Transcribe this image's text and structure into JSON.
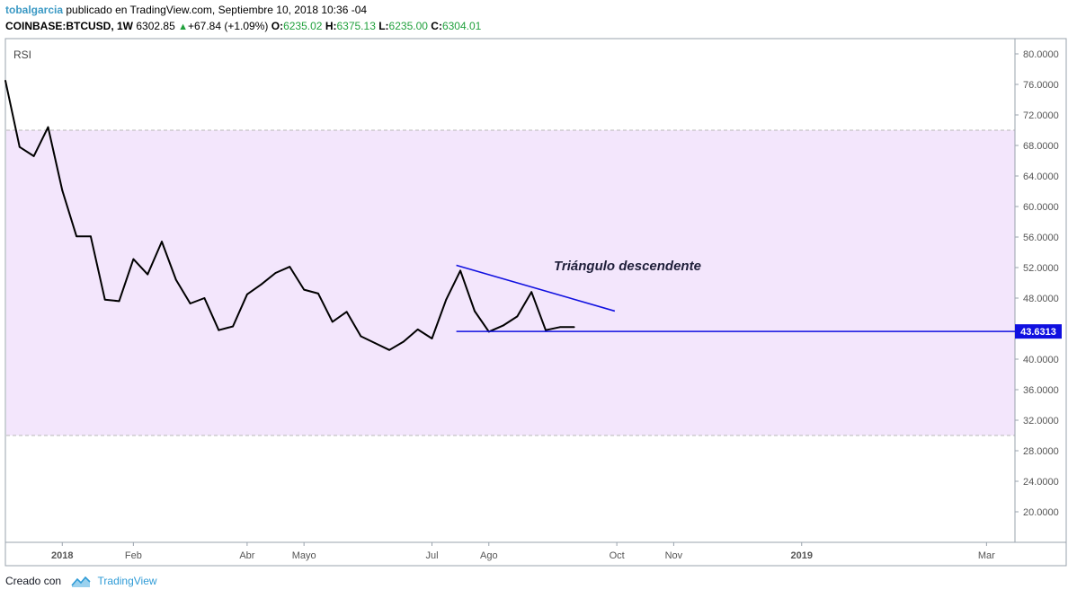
{
  "header": {
    "author": "tobalgarcia",
    "published_text": "publicado en TradingView.com, Septiembre 10, 2018 10:36 -04",
    "symbol": "COINBASE:BTCUSD, 1W",
    "last_price": "6302.85",
    "change": "+67.84 (+1.09%)",
    "open_label": "O:",
    "open": "6235.02",
    "high_label": "H:",
    "high": "6375.13",
    "low_label": "L:",
    "low": "6235.00",
    "close_label": "C:",
    "close": "6304.01"
  },
  "colors": {
    "rsi_line": "#000000",
    "band_fill": "#f3e6fc",
    "trend_lines": "#1010e0",
    "grid_dashed": "#b8b8b8",
    "price_label_bg": "#1010e0",
    "up": "#21a13d",
    "axis_text": "#555555",
    "annotation": "#1f1f3a"
  },
  "chart_data": {
    "type": "line",
    "title": "",
    "indicator_label": "RSI",
    "xlabel": "",
    "ylabel": "",
    "ylim": [
      16,
      82
    ],
    "y_ticks": [
      "80.0000",
      "76.0000",
      "72.0000",
      "68.0000",
      "64.0000",
      "60.0000",
      "56.0000",
      "52.0000",
      "48.0000",
      "44.0000",
      "40.0000",
      "36.0000",
      "32.0000",
      "28.0000",
      "24.0000",
      "20.0000"
    ],
    "x_axis": {
      "range": [
        "2017-12-04",
        "2019-04-15"
      ],
      "ticks": [
        {
          "date": "2018-01-01",
          "label": "2018",
          "bold": true
        },
        {
          "date": "2018-02-05",
          "label": "Feb",
          "bold": false
        },
        {
          "date": "2018-04-02",
          "label": "Abr",
          "bold": false
        },
        {
          "date": "2018-04-30",
          "label": "Mayo",
          "bold": false
        },
        {
          "date": "2018-07-02",
          "label": "Jul",
          "bold": false
        },
        {
          "date": "2018-07-30",
          "label": "Ago",
          "bold": false
        },
        {
          "date": "2018-10-01",
          "label": "Oct",
          "bold": false
        },
        {
          "date": "2018-10-29",
          "label": "Nov",
          "bold": false
        },
        {
          "date": "2018-12-31",
          "label": "2019",
          "bold": true
        },
        {
          "date": "2019-04-01",
          "label": "Mar",
          "bold": false
        }
      ]
    },
    "band": {
      "upper": 70,
      "lower": 30
    },
    "grid": false,
    "series": [
      {
        "name": "",
        "x": [
          "2017-12-04",
          "2017-12-11",
          "2017-12-18",
          "2017-12-25",
          "2018-01-01",
          "2018-01-08",
          "2018-01-15",
          "2018-01-22",
          "2018-01-29",
          "2018-02-05",
          "2018-02-12",
          "2018-02-19",
          "2018-02-26",
          "2018-03-05",
          "2018-03-12",
          "2018-03-19",
          "2018-03-26",
          "2018-04-02",
          "2018-04-09",
          "2018-04-16",
          "2018-04-23",
          "2018-04-30",
          "2018-05-07",
          "2018-05-14",
          "2018-05-21",
          "2018-05-28",
          "2018-06-04",
          "2018-06-11",
          "2018-06-18",
          "2018-06-25",
          "2018-07-02",
          "2018-07-09",
          "2018-07-16",
          "2018-07-23",
          "2018-07-30",
          "2018-08-06",
          "2018-08-13",
          "2018-08-20",
          "2018-08-27",
          "2018-09-03",
          "2018-09-10"
        ],
        "values": [
          76.5,
          67.8,
          66.6,
          70.4,
          62.1,
          56.1,
          56.1,
          47.8,
          47.6,
          53.1,
          51.1,
          55.4,
          50.4,
          47.3,
          48.0,
          43.8,
          44.3,
          48.5,
          49.8,
          51.3,
          52.1,
          49.1,
          48.6,
          44.9,
          46.2,
          43.0,
          42.1,
          41.2,
          42.3,
          43.9,
          42.7,
          47.8,
          51.6,
          46.3,
          43.6,
          44.4,
          45.6,
          48.8,
          43.8,
          44.2,
          44.2
        ]
      }
    ],
    "annotations": {
      "triangle_label": "Triángulo descendente",
      "upper_trendline": {
        "start": [
          "2018-07-14",
          52.3
        ],
        "end": [
          "2018-09-30",
          46.3
        ]
      },
      "horizontal_line": {
        "value": 43.6313,
        "start_date": "2018-07-14"
      }
    },
    "price_label": "43.6313"
  },
  "footer": {
    "created_with": "Creado con",
    "brand": "TradingView"
  }
}
